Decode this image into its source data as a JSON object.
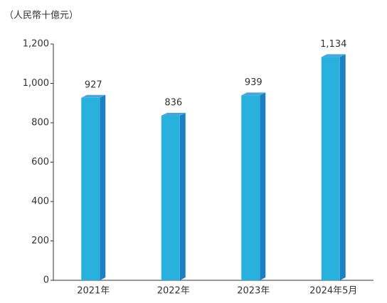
{
  "chart_data": {
    "type": "bar3d",
    "y_axis_label": "（人民幣十億元）",
    "categories": [
      "2021年",
      "2022年",
      "2023年",
      "2024年5月"
    ],
    "values": [
      927,
      836,
      939,
      1134
    ],
    "value_labels": [
      "927",
      "836",
      "939",
      "1,134"
    ],
    "colors": {
      "front": "#29b1de",
      "side": "#1d80c2",
      "top": "#4aa6d8"
    },
    "ylim": [
      0,
      1200
    ],
    "yticks": [
      0,
      200,
      400,
      600,
      800,
      {
        "value": 1000,
        "label": "1,000"
      },
      {
        "value": 1200,
        "label": "1,200"
      }
    ],
    "grid": false
  }
}
